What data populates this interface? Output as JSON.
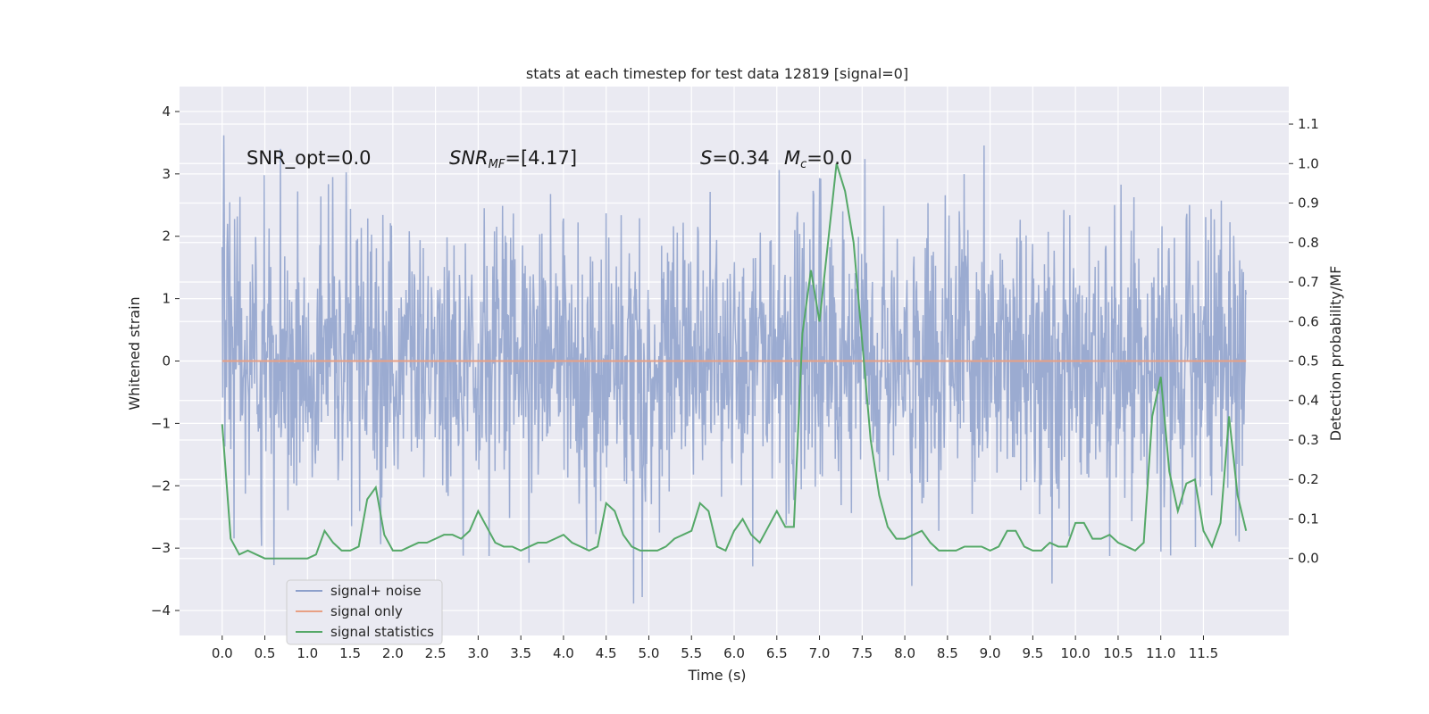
{
  "chart_data": {
    "type": "line",
    "title": "stats at each timestep for test data 12819 [signal=0]",
    "xlabel": "Time (s)",
    "ylabel": "Whitened strain",
    "y2label": "Detection probability/MF",
    "xlim": [
      -0.5,
      12.5
    ],
    "ylim": [
      -4.4,
      4.4
    ],
    "y2lim": [
      -0.195,
      1.195
    ],
    "x_ticks": [
      0.0,
      0.5,
      1.0,
      1.5,
      2.0,
      2.5,
      3.0,
      3.5,
      4.0,
      4.5,
      5.0,
      5.5,
      6.0,
      6.5,
      7.0,
      7.5,
      8.0,
      8.5,
      9.0,
      9.5,
      10.0,
      10.5,
      11.0,
      11.5
    ],
    "x_tick_labels": [
      "0.0",
      "0.5",
      "1.0",
      "1.5",
      "2.0",
      "2.5",
      "3.0",
      "3.5",
      "4.0",
      "4.5",
      "5.0",
      "5.5",
      "6.0",
      "6.5",
      "7.0",
      "7.5",
      "8.0",
      "8.5",
      "9.0",
      "9.5",
      "10.0",
      "10.5",
      "11.0",
      "11.5"
    ],
    "y_ticks": [
      -4,
      -3,
      -2,
      -1,
      0,
      1,
      2,
      3,
      4
    ],
    "y_tick_labels": [
      "−4",
      "−3",
      "−2",
      "−1",
      "0",
      "1",
      "2",
      "3",
      "4"
    ],
    "y2_ticks": [
      0.0,
      0.1,
      0.2,
      0.3,
      0.4,
      0.5,
      0.6,
      0.7,
      0.8,
      0.9,
      1.0,
      1.1
    ],
    "y2_tick_labels": [
      "0.0",
      "0.1",
      "0.2",
      "0.3",
      "0.4",
      "0.5",
      "0.6",
      "0.7",
      "0.8",
      "0.9",
      "1.0",
      "1.1"
    ],
    "grid": true,
    "legend_position": "lower-left",
    "annotations": {
      "snr_opt": "SNR_opt=0.0",
      "snr_mf": "[4.17]",
      "s_value": "=0.34",
      "mc_value": "=0.0"
    },
    "series": [
      {
        "name": "signal+ noise",
        "color": "#8da0cb",
        "x_range": [
          0.0,
          12.0
        ],
        "y_range": [
          -4.07,
          4.03
        ],
        "note_type": "dense noise"
      },
      {
        "name": "signal only",
        "color": "#e8a084",
        "x": [
          0.0,
          12.0
        ],
        "y": [
          0.0,
          0.0
        ]
      },
      {
        "name": "signal statistics",
        "color": "#55a868",
        "axis": "right",
        "x": [
          0.0,
          0.1,
          0.2,
          0.3,
          0.4,
          0.5,
          0.6,
          0.7,
          0.8,
          0.9,
          1.0,
          1.1,
          1.2,
          1.3,
          1.4,
          1.5,
          1.6,
          1.7,
          1.8,
          1.9,
          2.0,
          2.1,
          2.2,
          2.3,
          2.4,
          2.5,
          2.6,
          2.7,
          2.8,
          2.9,
          3.0,
          3.1,
          3.2,
          3.3,
          3.4,
          3.5,
          3.6,
          3.7,
          3.8,
          3.9,
          4.0,
          4.1,
          4.2,
          4.3,
          4.4,
          4.5,
          4.6,
          4.7,
          4.8,
          4.9,
          5.0,
          5.1,
          5.2,
          5.3,
          5.4,
          5.5,
          5.6,
          5.7,
          5.8,
          5.9,
          6.0,
          6.1,
          6.2,
          6.3,
          6.4,
          6.5,
          6.6,
          6.7,
          6.8,
          6.9,
          7.0,
          7.1,
          7.2,
          7.3,
          7.4,
          7.5,
          7.6,
          7.7,
          7.8,
          7.9,
          8.0,
          8.1,
          8.2,
          8.3,
          8.4,
          8.5,
          8.6,
          8.7,
          8.8,
          8.9,
          9.0,
          9.1,
          9.2,
          9.3,
          9.4,
          9.5,
          9.6,
          9.7,
          9.8,
          9.9,
          10.0,
          10.1,
          10.2,
          10.3,
          10.4,
          10.5,
          10.6,
          10.7,
          10.8,
          10.9,
          11.0,
          11.1,
          11.2,
          11.3,
          11.4,
          11.5,
          11.6,
          11.7,
          11.8,
          11.9,
          12.0
        ],
        "y": [
          0.34,
          0.05,
          0.01,
          0.02,
          0.01,
          0.0,
          0.0,
          0.0,
          0.0,
          0.0,
          0.0,
          0.01,
          0.07,
          0.04,
          0.02,
          0.02,
          0.03,
          0.15,
          0.18,
          0.06,
          0.02,
          0.02,
          0.03,
          0.04,
          0.04,
          0.05,
          0.06,
          0.06,
          0.05,
          0.07,
          0.12,
          0.08,
          0.04,
          0.03,
          0.03,
          0.02,
          0.03,
          0.04,
          0.04,
          0.05,
          0.06,
          0.04,
          0.03,
          0.02,
          0.03,
          0.14,
          0.12,
          0.06,
          0.03,
          0.02,
          0.02,
          0.02,
          0.03,
          0.05,
          0.06,
          0.07,
          0.14,
          0.12,
          0.03,
          0.02,
          0.07,
          0.1,
          0.06,
          0.04,
          0.08,
          0.12,
          0.08,
          0.08,
          0.57,
          0.73,
          0.6,
          0.8,
          1.0,
          0.93,
          0.8,
          0.55,
          0.3,
          0.16,
          0.08,
          0.05,
          0.05,
          0.06,
          0.07,
          0.04,
          0.02,
          0.02,
          0.02,
          0.03,
          0.03,
          0.03,
          0.02,
          0.03,
          0.07,
          0.07,
          0.03,
          0.02,
          0.02,
          0.04,
          0.03,
          0.03,
          0.09,
          0.09,
          0.05,
          0.05,
          0.06,
          0.04,
          0.03,
          0.02,
          0.04,
          0.36,
          0.46,
          0.22,
          0.12,
          0.19,
          0.2,
          0.07,
          0.03,
          0.09,
          0.36,
          0.16,
          0.07
        ]
      }
    ]
  }
}
